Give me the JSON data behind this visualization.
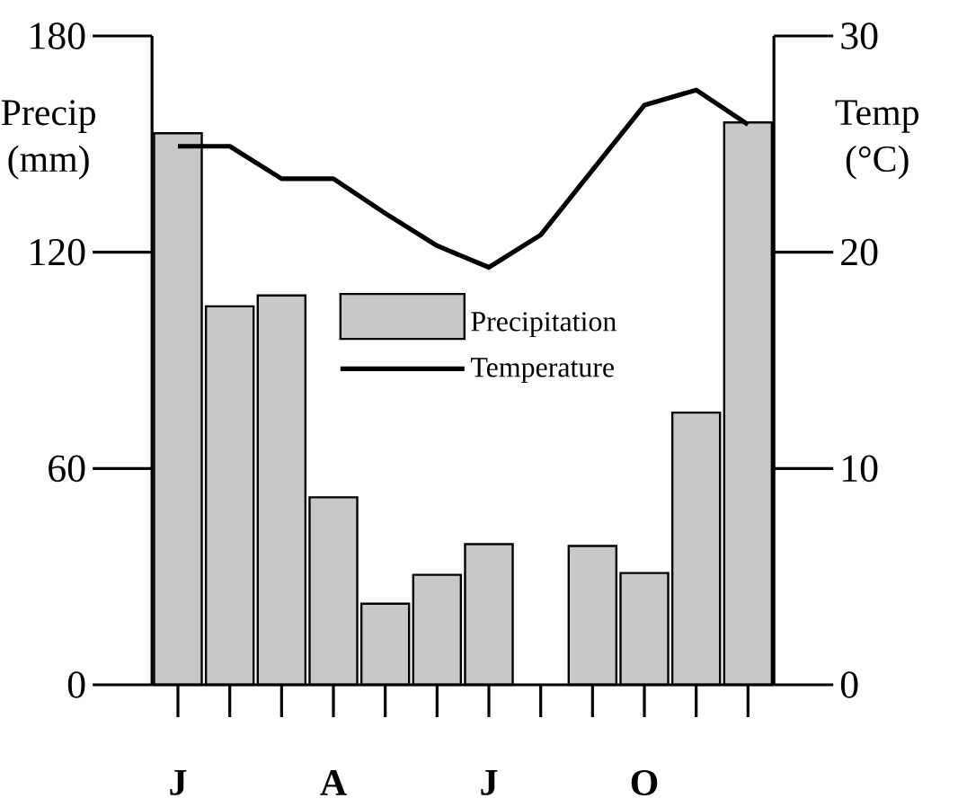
{
  "chart_data": {
    "type": "bar",
    "categories": [
      "J",
      null,
      null,
      "A",
      null,
      null,
      "J",
      null,
      null,
      "O",
      null,
      null
    ],
    "ylabel": "Precip (mm)",
    "y2label": "Temp (°C)",
    "ylim": [
      0,
      180
    ],
    "yticks": [
      0,
      60,
      120,
      180
    ],
    "y2lim": [
      0,
      30
    ],
    "y2ticks": [
      0,
      10,
      20,
      30
    ],
    "legend": "top",
    "series": [
      {
        "name": "Precipitation",
        "color": "#c8c8c8",
        "values": [
          153,
          105,
          108,
          52,
          22.5,
          30.5,
          39,
          null,
          38.5,
          31,
          75.5,
          156
        ]
      },
      {
        "name": "Temperature",
        "type": "line",
        "axis": "y2",
        "color": "#000000",
        "values": [
          24.9,
          24.9,
          23.4,
          23.4,
          21.8,
          20.3,
          19.3,
          20.8,
          23.8,
          26.8,
          27.5,
          25.9
        ]
      }
    ]
  }
}
